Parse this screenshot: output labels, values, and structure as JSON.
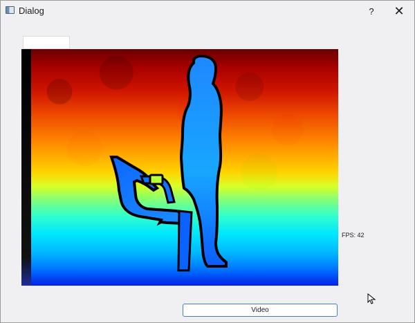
{
  "window": {
    "title": "Dialog",
    "help_label": "?",
    "close_label": "✕"
  },
  "status": {
    "fps_text": "FPS: 42"
  },
  "controls": {
    "video_label": "Video"
  },
  "icons": {
    "app": "dialog-window-icon",
    "help": "help-icon",
    "close": "close-icon",
    "cursor": "mouse-pointer-icon"
  },
  "colors": {
    "window_bg": "#f0eff2",
    "button_border": "#3c7bd8"
  }
}
